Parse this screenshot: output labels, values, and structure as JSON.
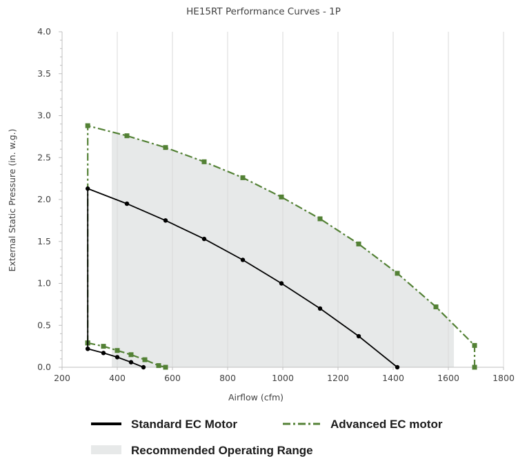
{
  "chart_data": {
    "type": "line",
    "title": "HE15RT Performance Curves - 1P",
    "xlabel": "Airflow (cfm)",
    "ylabel": "External Static Pressure (in. w.g.)",
    "xlim": [
      200,
      1800
    ],
    "ylim": [
      0,
      4.0
    ],
    "x_ticks": [
      200,
      400,
      600,
      800,
      1000,
      1200,
      1400,
      1600,
      1800
    ],
    "y_ticks": [
      0.0,
      0.5,
      1.0,
      1.5,
      2.0,
      2.5,
      3.0,
      3.5,
      4.0
    ],
    "x_tick_labels": [
      "200",
      "400",
      "600",
      "800",
      "1000",
      "1200",
      "1400",
      "1600",
      "1800"
    ],
    "y_tick_labels": [
      "0.0",
      "0.5",
      "1.0",
      "1.5",
      "2.0",
      "2.5",
      "3.0",
      "3.5",
      "4.0"
    ],
    "grid": "vertical",
    "legend_position": "bottom",
    "series": [
      {
        "name": "Standard EC Motor",
        "color": "#000000",
        "style": "solid",
        "marker": "circle",
        "segments": [
          [
            [
              293,
              0.22
            ],
            [
              293,
              2.13
            ],
            [
              435,
              1.95
            ],
            [
              575,
              1.75
            ],
            [
              715,
              1.53
            ],
            [
              855,
              1.28
            ],
            [
              995,
              1.0
            ],
            [
              1135,
              0.7
            ],
            [
              1275,
              0.37
            ],
            [
              1415,
              0.0
            ]
          ],
          [
            [
              293,
              0.22
            ],
            [
              350,
              0.17
            ],
            [
              400,
              0.12
            ],
            [
              450,
              0.06
            ],
            [
              495,
              0.0
            ]
          ]
        ]
      },
      {
        "name": "Advanced EC motor",
        "color": "#538135",
        "style": "dashdot",
        "marker": "square",
        "segments": [
          [
            [
              293,
              0.29
            ],
            [
              293,
              2.88
            ],
            [
              435,
              2.76
            ],
            [
              575,
              2.62
            ],
            [
              715,
              2.45
            ],
            [
              855,
              2.26
            ],
            [
              995,
              2.03
            ],
            [
              1135,
              1.77
            ],
            [
              1275,
              1.47
            ],
            [
              1415,
              1.12
            ],
            [
              1555,
              0.72
            ],
            [
              1695,
              0.26
            ],
            [
              1695,
              0.0
            ]
          ],
          [
            [
              293,
              0.29
            ],
            [
              350,
              0.25
            ],
            [
              400,
              0.2
            ],
            [
              450,
              0.15
            ],
            [
              500,
              0.09
            ],
            [
              550,
              0.02
            ],
            [
              575,
              0.0
            ]
          ]
        ]
      }
    ],
    "shaded_region": {
      "name": "Recommended Operating Range",
      "color": "#e7e9e9",
      "polygon": [
        [
          380,
          2.8
        ],
        [
          435,
          2.76
        ],
        [
          575,
          2.62
        ],
        [
          715,
          2.45
        ],
        [
          855,
          2.26
        ],
        [
          995,
          2.03
        ],
        [
          1135,
          1.77
        ],
        [
          1275,
          1.47
        ],
        [
          1415,
          1.12
        ],
        [
          1555,
          0.72
        ],
        [
          1620,
          0.5
        ],
        [
          1620,
          0.0
        ],
        [
          380,
          0.0
        ]
      ]
    },
    "legend": [
      {
        "label": "Standard EC Motor",
        "swatch": "line",
        "color": "#000000"
      },
      {
        "label": "Advanced EC motor",
        "swatch": "dashdot",
        "color": "#538135"
      },
      {
        "label": "Recommended Operating Range",
        "swatch": "box",
        "color": "#e7e9e9"
      }
    ]
  }
}
